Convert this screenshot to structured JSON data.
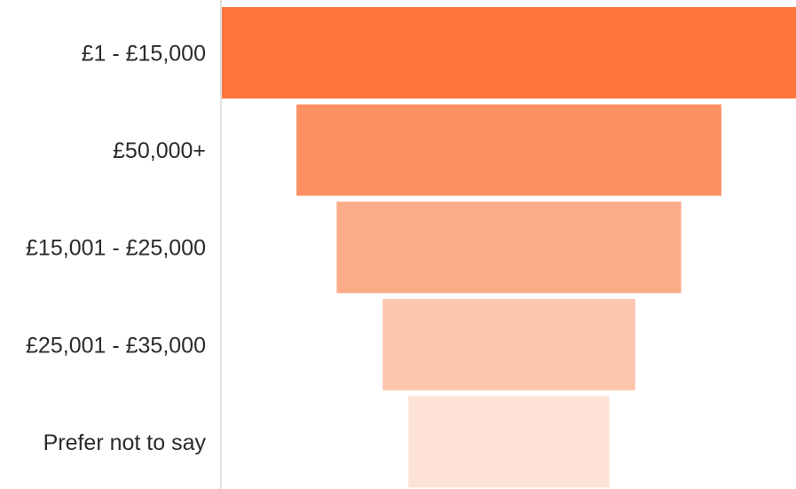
{
  "chart_data": {
    "type": "bar",
    "subtype": "funnel",
    "categories": [
      "£1 - £15,000",
      "£50,000+",
      "£15,001 - £25,000",
      "£25,001 - £35,000",
      "Prefer not to say"
    ],
    "values": [
      100,
      74,
      60,
      44,
      35
    ],
    "value_unit": "percent of largest category",
    "colors": [
      "#fe763c",
      "#fd9063",
      "#fcab88",
      "#fdc7ae",
      "#fee2d6"
    ],
    "title": "",
    "xlabel": "",
    "ylabel": "",
    "grid": false,
    "legend": "none"
  }
}
